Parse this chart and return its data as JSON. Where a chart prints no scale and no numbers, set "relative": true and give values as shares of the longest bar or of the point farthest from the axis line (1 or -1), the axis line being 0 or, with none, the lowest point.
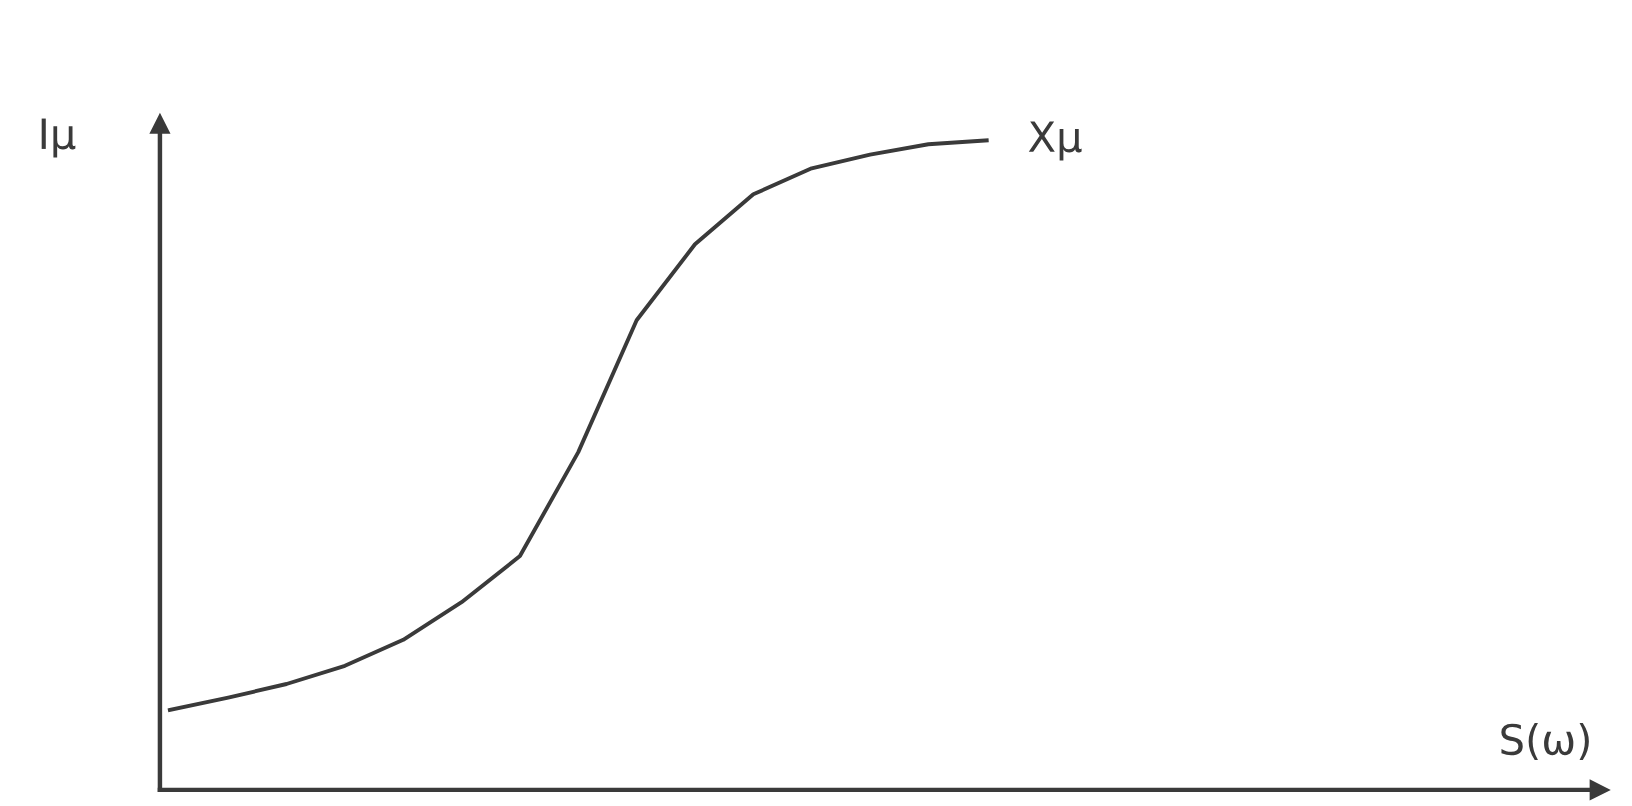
{
  "chart_data": {
    "type": "line",
    "relative": true,
    "xlabel": "S(ω)",
    "ylabel": "Iμ",
    "categories": [
      null,
      null,
      null,
      null,
      null,
      null,
      null,
      null,
      null,
      null,
      null,
      null,
      null,
      null,
      null,
      null,
      null,
      null,
      null,
      null,
      null,
      null,
      null,
      null,
      null
    ],
    "series": [
      {
        "name": "Xμ",
        "color": "#3a3a3a",
        "values": [
          0.123,
          0.142,
          0.163,
          0.191,
          0.231,
          0.289,
          0.36,
          0.52,
          0.723,
          0.84,
          0.917,
          0.957,
          0.978,
          0.994,
          1.0,
          null,
          null,
          null,
          null,
          null,
          null,
          null,
          null,
          null,
          null
        ]
      }
    ],
    "marker": "none"
  }
}
